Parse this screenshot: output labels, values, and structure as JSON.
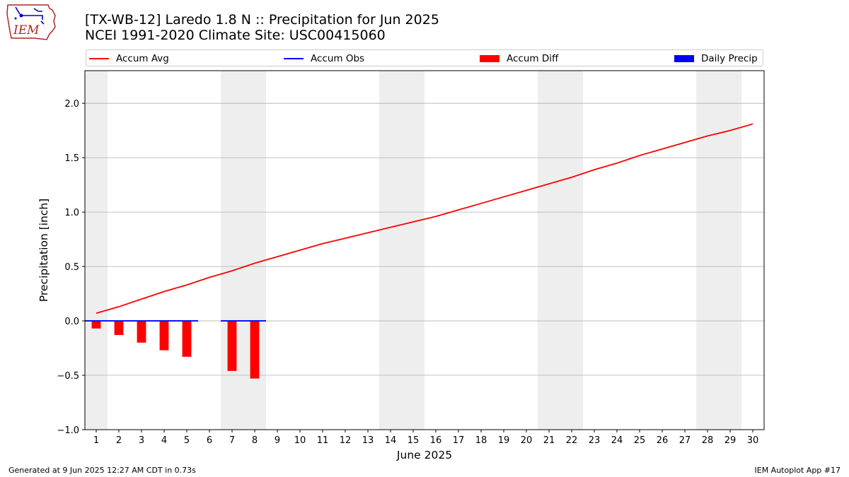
{
  "header": {
    "title_line1": "[TX-WB-12] Laredo 1.8 N :: Precipitation for Jun 2025",
    "title_line2": "NCEI 1991-2020 Climate Site: USC00415060"
  },
  "logo": {
    "text": "IEM"
  },
  "footer": {
    "left": "Generated at 9 Jun 2025 12:27 AM CDT in 0.73s",
    "right": "IEM Autoplot App #17"
  },
  "colors": {
    "accum_avg": "#ff0000",
    "accum_obs": "#0000ff",
    "accum_diff": "#ff0000",
    "daily_precip": "#0000ff",
    "weekend_shade": "#eeeeee",
    "grid": "#b0b0b0"
  },
  "chart_data": {
    "type": "line",
    "xlabel": "June 2025",
    "ylabel": "Precipitation [inch]",
    "ylim": [
      -1.0,
      2.3
    ],
    "xlim": [
      0.5,
      30.5
    ],
    "yticks": [
      -1.0,
      -0.5,
      0.0,
      0.5,
      1.0,
      1.5,
      2.0
    ],
    "ytick_labels": [
      "−1.0",
      "−0.5",
      "0.0",
      "0.5",
      "1.0",
      "1.5",
      "2.0"
    ],
    "xticks": [
      1,
      2,
      3,
      4,
      5,
      6,
      7,
      8,
      9,
      10,
      11,
      12,
      13,
      14,
      15,
      16,
      17,
      18,
      19,
      20,
      21,
      22,
      23,
      24,
      25,
      26,
      27,
      28,
      29,
      30
    ],
    "grid": "y",
    "legend_placement": "top",
    "weekend_days": [
      1,
      7,
      8,
      14,
      15,
      21,
      22,
      28,
      29
    ],
    "legend": [
      {
        "label": "Accum Avg",
        "kind": "line",
        "color": "#ff0000"
      },
      {
        "label": "Accum Obs",
        "kind": "line",
        "color": "#0000ff"
      },
      {
        "label": "Accum Diff",
        "kind": "box",
        "color": "#ff0000"
      },
      {
        "label": "Daily Precip",
        "kind": "box",
        "color": "#0000ff"
      }
    ],
    "series": [
      {
        "name": "Accum Avg",
        "type": "line",
        "x": [
          1,
          2,
          3,
          4,
          5,
          6,
          7,
          8,
          9,
          10,
          11,
          12,
          13,
          14,
          15,
          16,
          17,
          18,
          19,
          20,
          21,
          22,
          23,
          24,
          25,
          26,
          27,
          28,
          29,
          30
        ],
        "values": [
          0.07,
          0.13,
          0.2,
          0.27,
          0.33,
          0.4,
          0.46,
          0.53,
          0.59,
          0.65,
          0.71,
          0.76,
          0.81,
          0.86,
          0.91,
          0.96,
          1.02,
          1.08,
          1.14,
          1.2,
          1.26,
          1.32,
          1.39,
          1.45,
          1.52,
          1.58,
          1.64,
          1.7,
          1.75,
          1.81
        ]
      },
      {
        "name": "Accum Obs",
        "type": "step",
        "x": [
          1,
          2,
          3,
          4,
          5,
          7,
          8
        ],
        "values": [
          0,
          0,
          0,
          0,
          0,
          0,
          0
        ]
      },
      {
        "name": "Accum Diff",
        "type": "bar",
        "x": [
          1,
          2,
          3,
          4,
          5,
          7,
          8
        ],
        "values": [
          -0.07,
          -0.13,
          -0.2,
          -0.27,
          -0.33,
          -0.46,
          -0.53
        ]
      },
      {
        "name": "Daily Precip",
        "type": "bar",
        "x": [],
        "values": []
      }
    ]
  }
}
